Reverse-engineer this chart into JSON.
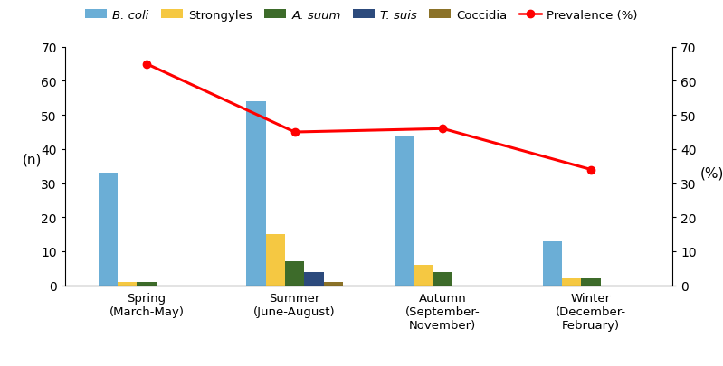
{
  "seasons": [
    "Spring\n(March-May)",
    "Summer\n(June-August)",
    "Autumn\n(September-\nNovember)",
    "Winter\n(December-\nFebruary)"
  ],
  "B_coli": [
    33,
    54,
    44,
    13
  ],
  "Strongyles": [
    1,
    15,
    6,
    2
  ],
  "A_suum": [
    1,
    7,
    4,
    2
  ],
  "T_suis": [
    0,
    4,
    0,
    0
  ],
  "Coccidia": [
    0,
    1,
    0,
    0
  ],
  "Prevalence": [
    65,
    45,
    46,
    34
  ],
  "colors": {
    "B_coli": "#6BAED6",
    "Strongyles": "#F5C842",
    "A_suum": "#3D6B2A",
    "T_suis": "#2C4A7C",
    "Coccidia": "#8B7228",
    "Prevalence": "#FF0000"
  },
  "ylim_left": [
    0,
    70
  ],
  "ylim_right": [
    0,
    70
  ],
  "ylabel_left": "(n)",
  "ylabel_right": "(%)",
  "yticks": [
    0,
    10,
    20,
    30,
    40,
    50,
    60,
    70
  ],
  "legend_labels": [
    "B. coli",
    "Strongyles",
    "A. suum",
    "T. suis",
    "Coccidia",
    "Prevalence (%)"
  ],
  "italic_labels": [
    "B. coli",
    "A. suum",
    "T. suis"
  ],
  "bar_width": 0.13
}
